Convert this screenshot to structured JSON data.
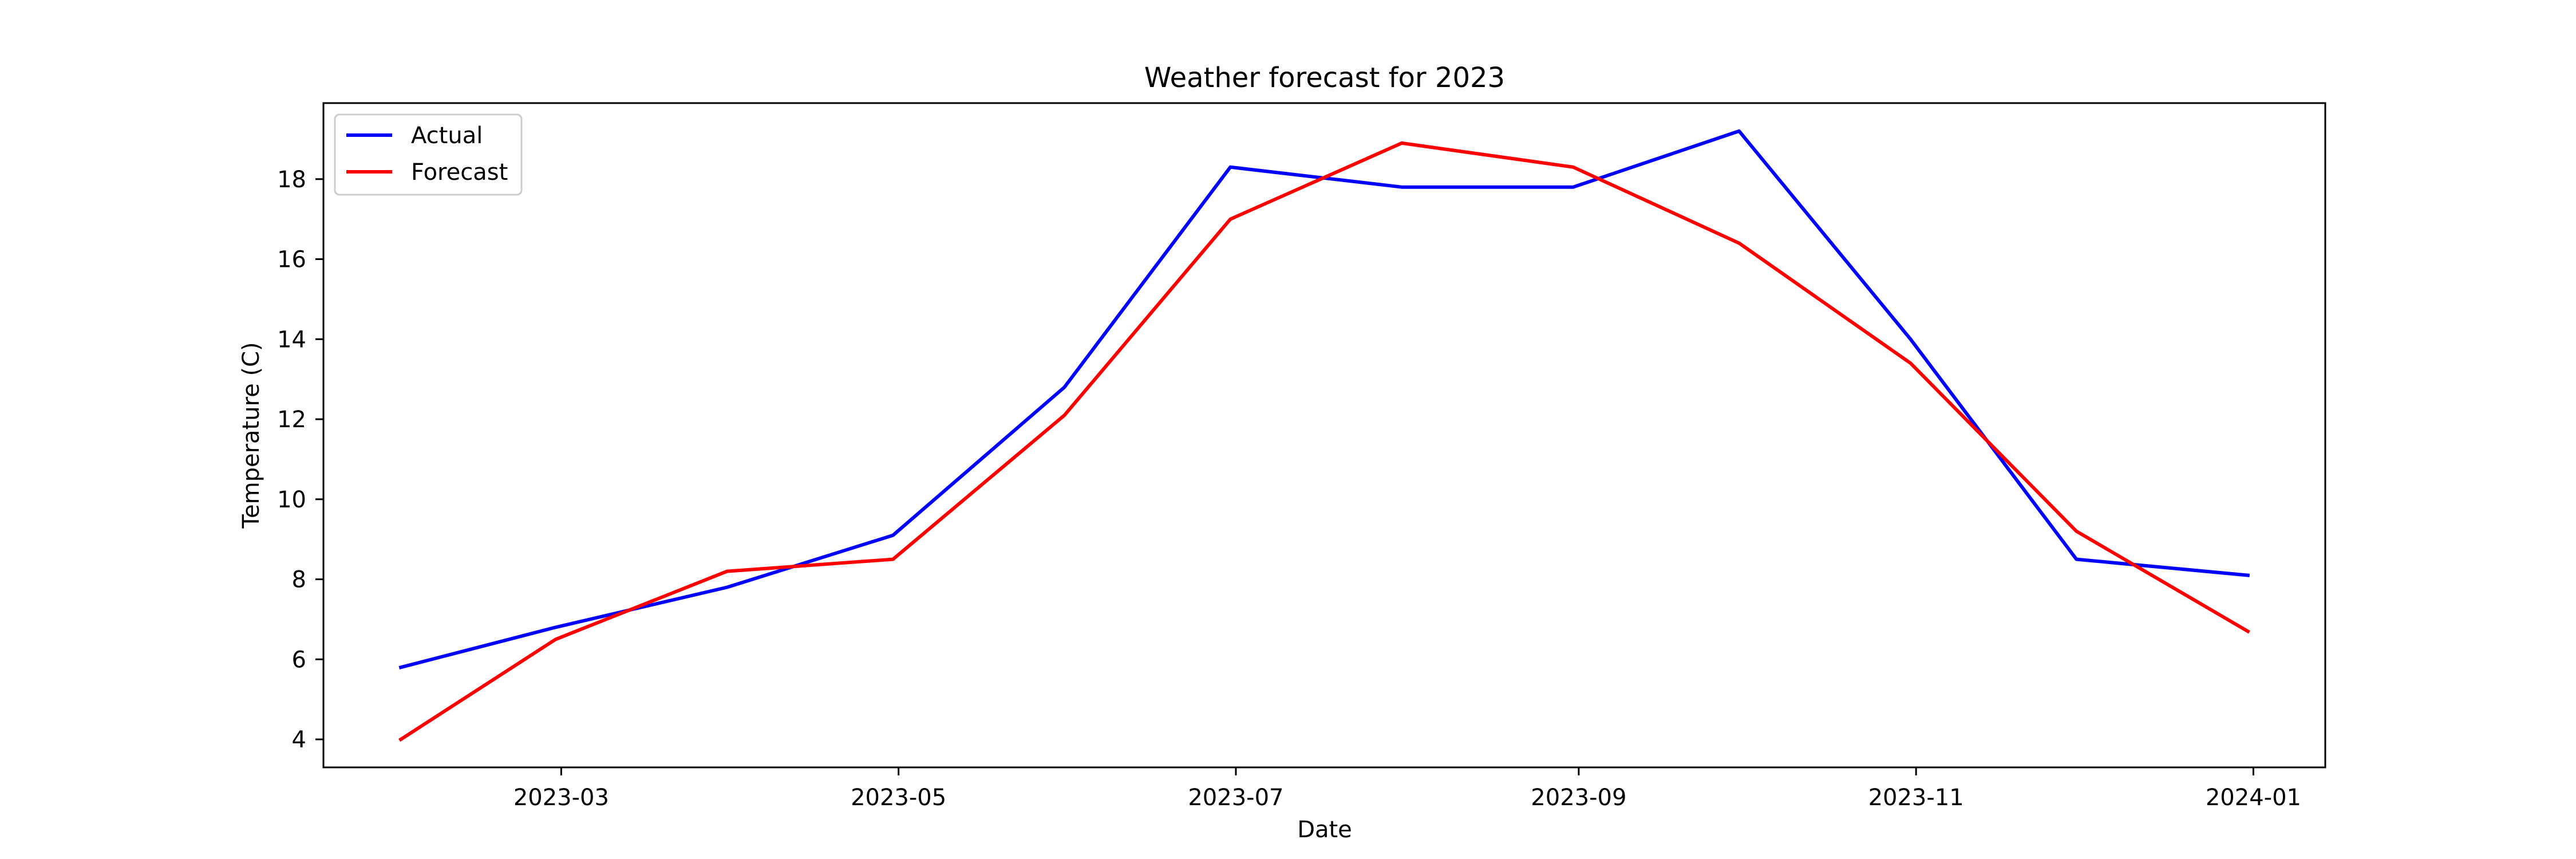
{
  "chart_data": {
    "type": "line",
    "title": "Weather forecast for 2023",
    "xlabel": "Date",
    "ylabel": "Temperature (C)",
    "x": [
      "2023-01-31",
      "2023-02-28",
      "2023-03-31",
      "2023-04-30",
      "2023-05-31",
      "2023-06-30",
      "2023-07-31",
      "2023-08-31",
      "2023-09-30",
      "2023-10-31",
      "2023-11-30",
      "2023-12-31"
    ],
    "series": [
      {
        "name": "Actual",
        "color": "#0000ff",
        "values": [
          5.8,
          6.8,
          7.8,
          9.1,
          12.8,
          18.3,
          17.8,
          17.8,
          19.2,
          14.0,
          8.5,
          8.1
        ]
      },
      {
        "name": "Forecast",
        "color": "#ff0000",
        "values": [
          4.0,
          6.5,
          8.2,
          8.5,
          12.1,
          17.0,
          18.9,
          18.3,
          16.4,
          13.4,
          9.2,
          6.7
        ]
      }
    ],
    "xlim": [
      "2023-01-17",
      "2024-01-14"
    ],
    "ylim": [
      3.3,
      19.9
    ],
    "xticks": [
      "2023-03",
      "2023-05",
      "2023-07",
      "2023-09",
      "2023-11",
      "2024-01"
    ],
    "yticks": [
      4,
      6,
      8,
      10,
      12,
      14,
      16,
      18
    ],
    "grid": false,
    "legend_position": "upper left"
  }
}
